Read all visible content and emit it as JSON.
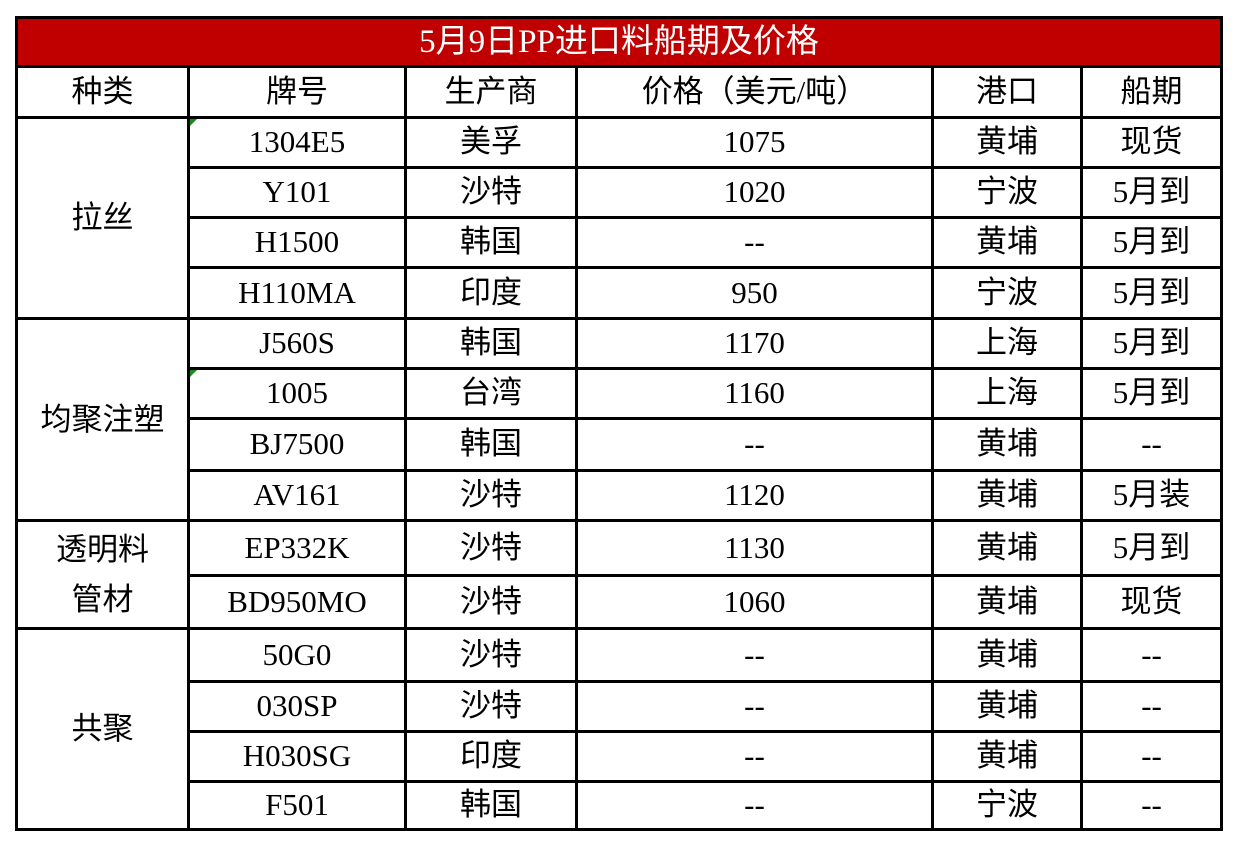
{
  "title": "5月9日PP进口料船期及价格",
  "headers": [
    "种类",
    "牌号",
    "生产商",
    "价格（美元/吨）",
    "港口",
    "船期"
  ],
  "groups": [
    {
      "category": "拉丝",
      "rows": [
        {
          "grade": "1304E5",
          "producer": "美孚",
          "price": "1075",
          "port": "黄埔",
          "shipping": "现货",
          "note_mark": true
        },
        {
          "grade": "Y101",
          "producer": "沙特",
          "price": "1020",
          "port": "宁波",
          "shipping": "5月到"
        },
        {
          "grade": "H1500",
          "producer": "韩国",
          "price": "--",
          "port": "黄埔",
          "shipping": "5月到"
        },
        {
          "grade": "H110MA",
          "producer": "印度",
          "price": "950",
          "port": "宁波",
          "shipping": "5月到"
        }
      ]
    },
    {
      "category": "均聚注塑",
      "rows": [
        {
          "grade": "J560S",
          "producer": "韩国",
          "price": "1170",
          "port": "上海",
          "shipping": "5月到"
        },
        {
          "grade": "1005",
          "producer": "台湾",
          "price": "1160",
          "port": "上海",
          "shipping": "5月到",
          "note_mark": true
        },
        {
          "grade": "BJ7500",
          "producer": "韩国",
          "price": "--",
          "port": "黄埔",
          "shipping": "--"
        },
        {
          "grade": "AV161",
          "producer": "沙特",
          "price": "1120",
          "port": "黄埔",
          "shipping": "5月装"
        }
      ]
    },
    {
      "category": "透明料\n管材",
      "rows": [
        {
          "grade": "EP332K",
          "producer": "沙特",
          "price": "1130",
          "port": "黄埔",
          "shipping": "5月到"
        },
        {
          "grade": "BD950MO",
          "producer": "沙特",
          "price": "1060",
          "port": "黄埔",
          "shipping": "现货"
        }
      ]
    },
    {
      "category": "共聚",
      "rows": [
        {
          "grade": "50G0",
          "producer": "沙特",
          "price": "--",
          "port": "黄埔",
          "shipping": "--"
        },
        {
          "grade": "030SP",
          "producer": "沙特",
          "price": "--",
          "port": "黄埔",
          "shipping": "--"
        },
        {
          "grade": "H030SG",
          "producer": "印度",
          "price": "--",
          "port": "黄埔",
          "shipping": "--"
        },
        {
          "grade": "F501",
          "producer": "韩国",
          "price": "--",
          "port": "宁波",
          "shipping": "--"
        }
      ]
    }
  ],
  "colors": {
    "title_bg": "#c00000",
    "title_text": "#ffffff",
    "comment_mark": "#1a8a1a"
  }
}
